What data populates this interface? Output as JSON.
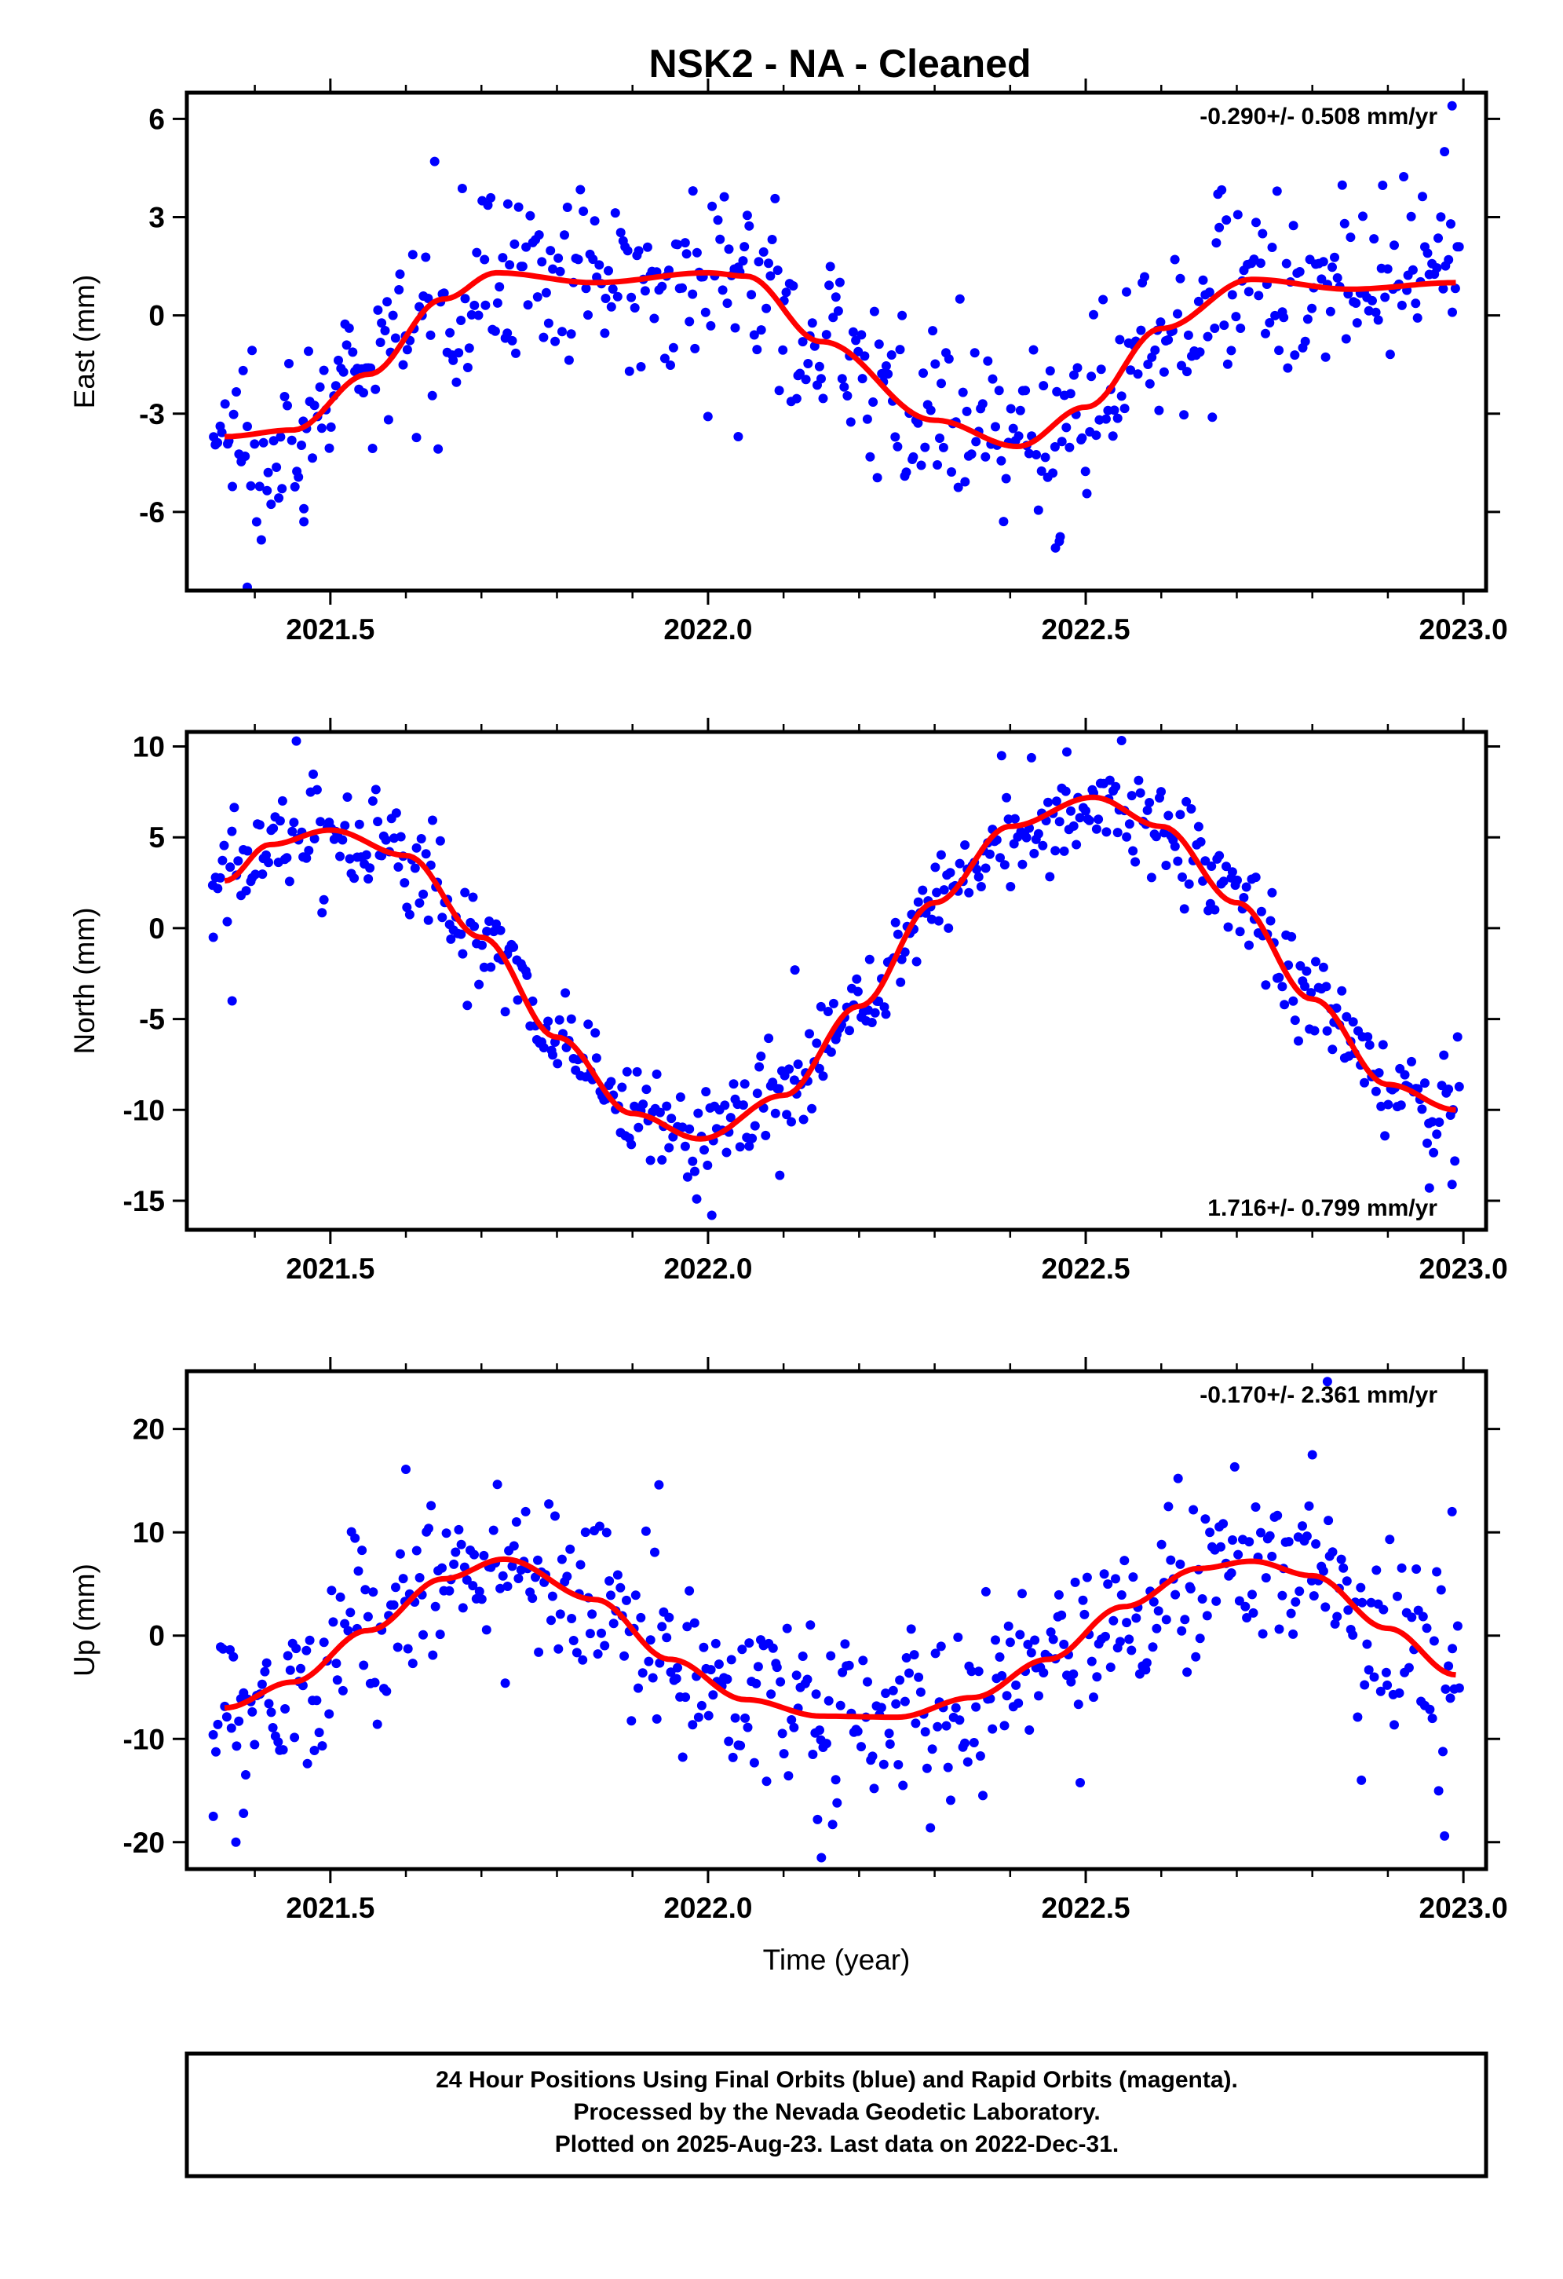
{
  "title": "NSK2  - NA - Cleaned",
  "colors": {
    "points": "#0000ff",
    "fit": "#ff0000",
    "frame": "#000000"
  },
  "footer": {
    "line1": "24 Hour Positions Using Final Orbits (blue) and Rapid Orbits (magenta).",
    "line2": "Processed by the Nevada Geodetic Laboratory.",
    "line3": "Plotted on 2025-Aug-23. Last data on 2022-Dec-31."
  },
  "chart_data": [
    {
      "type": "scatter",
      "ylabel": "East (mm)",
      "xlabel": "",
      "rate": "-0.290+/- 0.508 mm/yr",
      "rate_position": "top-right",
      "xlim": [
        2021.31,
        2023.03
      ],
      "ylim": [
        -8.4,
        6.8
      ],
      "xticks": [
        "2021.5",
        "2022.0",
        "2022.5",
        "2023.0"
      ],
      "yticks": [
        "-6",
        "-3",
        "0",
        "3",
        "6"
      ],
      "fit_curve": {
        "x": [
          2021.36,
          2021.45,
          2021.55,
          2021.65,
          2021.72,
          2021.85,
          2022.0,
          2022.05,
          2022.15,
          2022.3,
          2022.41,
          2022.5,
          2022.6,
          2022.72,
          2022.85,
          2022.99
        ],
        "y": [
          -3.7,
          -3.5,
          -1.8,
          0.5,
          1.3,
          1.0,
          1.3,
          1.2,
          -0.8,
          -3.2,
          -4.0,
          -2.8,
          -0.4,
          1.1,
          0.8,
          1.0
        ]
      },
      "outliers": [
        {
          "x": 2021.39,
          "y": -8.3
        },
        {
          "x": 2021.465,
          "y": -5.9
        },
        {
          "x": 2021.465,
          "y": -6.3
        },
        {
          "x": 2022.04,
          "y": -3.7
        },
        {
          "x": 2022.46,
          "y": -7.1
        },
        {
          "x": 2022.465,
          "y": -6.9
        },
        {
          "x": 2022.985,
          "y": 6.4
        },
        {
          "x": 2022.975,
          "y": 5.0
        },
        {
          "x": 2021.98,
          "y": 3.8
        },
        {
          "x": 2022.675,
          "y": 3.7
        },
        {
          "x": 2021.735,
          "y": 3.4
        }
      ],
      "scatter_spread": 1.3
    },
    {
      "type": "scatter",
      "ylabel": "North (mm)",
      "xlabel": "",
      "rate": "1.716+/- 0.799 mm/yr",
      "rate_position": "bottom-right",
      "xlim": [
        2021.31,
        2023.03
      ],
      "ylim": [
        -16.6,
        10.8
      ],
      "xticks": [
        "2021.5",
        "2022.0",
        "2022.5",
        "2023.0"
      ],
      "yticks": [
        "-15",
        "-10",
        "-5",
        "0",
        "5",
        "10"
      ],
      "fit_curve": {
        "x": [
          2021.36,
          2021.42,
          2021.5,
          2021.6,
          2021.7,
          2021.8,
          2021.9,
          2021.99,
          2022.1,
          2022.2,
          2022.3,
          2022.4,
          2022.51,
          2022.6,
          2022.7,
          2022.8,
          2022.9,
          2022.99
        ],
        "y": [
          2.6,
          4.6,
          5.4,
          4.0,
          -0.5,
          -6.0,
          -10.2,
          -11.6,
          -9.2,
          -4.3,
          1.4,
          5.6,
          7.2,
          5.6,
          1.4,
          -3.9,
          -8.6,
          -10.0
        ],
        "note": ""
      },
      "outliers": [
        {
          "x": 2021.345,
          "y": -0.5
        },
        {
          "x": 2021.37,
          "y": -4.0
        },
        {
          "x": 2021.455,
          "y": 10.3
        },
        {
          "x": 2022.005,
          "y": -15.8
        },
        {
          "x": 2022.095,
          "y": -13.6
        },
        {
          "x": 2022.115,
          "y": -2.3
        },
        {
          "x": 2022.475,
          "y": 9.7
        },
        {
          "x": 2022.955,
          "y": -14.3
        },
        {
          "x": 2022.985,
          "y": -14.1
        }
      ],
      "scatter_spread": 1.5
    },
    {
      "type": "scatter",
      "ylabel": "Up (mm)",
      "xlabel": "Time (year)",
      "rate": "-0.170+/- 2.361 mm/yr",
      "rate_position": "top-right",
      "xlim": [
        2021.31,
        2023.03
      ],
      "ylim": [
        -22.6,
        25.6
      ],
      "xticks": [
        "2021.5",
        "2022.0",
        "2022.5",
        "2023.0"
      ],
      "yticks": [
        "-20",
        "-10",
        "0",
        "10",
        "20"
      ],
      "fit_curve": {
        "x": [
          2021.36,
          2021.45,
          2021.55,
          2021.65,
          2021.73,
          2021.85,
          2021.95,
          2022.05,
          2022.15,
          2022.25,
          2022.35,
          2022.45,
          2022.55,
          2022.65,
          2022.72,
          2022.8,
          2022.9,
          2022.99
        ],
        "y": [
          -7.0,
          -4.5,
          0.5,
          5.5,
          7.4,
          3.5,
          -2.3,
          -6.2,
          -7.8,
          -7.9,
          -6.0,
          -2.3,
          2.8,
          6.5,
          7.2,
          5.8,
          0.7,
          -3.8
        ]
      },
      "outliers": [
        {
          "x": 2021.345,
          "y": -17.5
        },
        {
          "x": 2021.375,
          "y": -20.0
        },
        {
          "x": 2021.385,
          "y": -17.2
        },
        {
          "x": 2022.15,
          "y": -21.5
        },
        {
          "x": 2022.145,
          "y": -17.8
        },
        {
          "x": 2022.82,
          "y": 24.6
        },
        {
          "x": 2022.865,
          "y": -14.0
        },
        {
          "x": 2022.975,
          "y": -19.4
        },
        {
          "x": 2022.985,
          "y": 12.0
        },
        {
          "x": 2021.6,
          "y": 16.1
        },
        {
          "x": 2021.935,
          "y": 14.6
        },
        {
          "x": 2022.8,
          "y": 17.5
        }
      ],
      "scatter_spread": 4.2
    }
  ]
}
